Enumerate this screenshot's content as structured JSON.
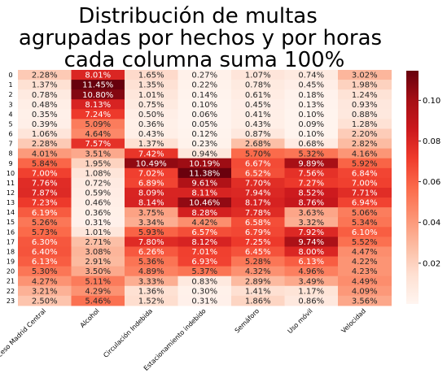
{
  "chart_data": {
    "type": "heatmap",
    "title_lines": [
      "Distribución de multas",
      "agrupadas por hechos y por horas",
      "cada columna suma 100%"
    ],
    "columns": [
      "Acceso Madrid Central",
      "Alcohol",
      "Circulación Indebida",
      "Estacionamiento indebido",
      "Semáforo",
      "Uso móvil",
      "Velocidad"
    ],
    "rows": [
      "0",
      "1",
      "2",
      "3",
      "4",
      "5",
      "6",
      "7",
      "8",
      "9",
      "10",
      "11",
      "12",
      "13",
      "14",
      "15",
      "16",
      "17",
      "18",
      "19",
      "20",
      "21",
      "22",
      "23"
    ],
    "values": [
      [
        0.0228,
        0.0801,
        0.0165,
        0.0027,
        0.0107,
        0.0074,
        0.0302
      ],
      [
        0.0137,
        0.1145,
        0.0135,
        0.0022,
        0.0078,
        0.0045,
        0.0198
      ],
      [
        0.0078,
        0.108,
        0.0101,
        0.0014,
        0.0061,
        0.0018,
        0.0124
      ],
      [
        0.0048,
        0.0813,
        0.0075,
        0.001,
        0.0045,
        0.0013,
        0.0093
      ],
      [
        0.0035,
        0.0724,
        0.005,
        0.0006,
        0.0041,
        0.001,
        0.0088
      ],
      [
        0.0039,
        0.0509,
        0.0036,
        0.0005,
        0.0043,
        0.0009,
        0.0128
      ],
      [
        0.0106,
        0.0464,
        0.0043,
        0.0012,
        0.0087,
        0.001,
        0.022
      ],
      [
        0.0228,
        0.0757,
        0.0137,
        0.0023,
        0.0268,
        0.0068,
        0.0282
      ],
      [
        0.0401,
        0.0351,
        0.0742,
        0.0094,
        0.057,
        0.0532,
        0.0416
      ],
      [
        0.0584,
        0.0195,
        0.1049,
        0.1019,
        0.0667,
        0.0989,
        0.0592
      ],
      [
        0.07,
        0.0108,
        0.0702,
        0.1138,
        0.0652,
        0.0756,
        0.0684
      ],
      [
        0.0776,
        0.0072,
        0.0689,
        0.0961,
        0.077,
        0.0727,
        0.07
      ],
      [
        0.0787,
        0.0059,
        0.0809,
        0.0811,
        0.0794,
        0.0852,
        0.0771
      ],
      [
        0.0723,
        0.0046,
        0.0814,
        0.1046,
        0.0817,
        0.0876,
        0.0694
      ],
      [
        0.0619,
        0.0036,
        0.0375,
        0.0828,
        0.0778,
        0.0363,
        0.0506
      ],
      [
        0.0526,
        0.0031,
        0.0334,
        0.0442,
        0.0658,
        0.0332,
        0.0534
      ],
      [
        0.0573,
        0.0101,
        0.0593,
        0.0657,
        0.0679,
        0.0792,
        0.061
      ],
      [
        0.063,
        0.0271,
        0.078,
        0.0812,
        0.0725,
        0.0974,
        0.0552
      ],
      [
        0.064,
        0.0308,
        0.0626,
        0.0701,
        0.0645,
        0.08,
        0.0447
      ],
      [
        0.0613,
        0.0291,
        0.0536,
        0.0693,
        0.0528,
        0.0613,
        0.0422
      ],
      [
        0.053,
        0.035,
        0.0489,
        0.0537,
        0.0432,
        0.0496,
        0.0423
      ],
      [
        0.0427,
        0.0511,
        0.0333,
        0.0083,
        0.0289,
        0.0349,
        0.0449
      ],
      [
        0.0321,
        0.0429,
        0.0136,
        0.003,
        0.0141,
        0.0117,
        0.0409
      ],
      [
        0.025,
        0.0546,
        0.0152,
        0.0031,
        0.0186,
        0.0086,
        0.0356
      ]
    ],
    "value_format": "percent_2dp",
    "colormap": "Reds",
    "colorbar": {
      "min": 0,
      "max": 0.1145,
      "ticks": [
        "0.02",
        "0.04",
        "0.06",
        "0.08",
        "0.10"
      ]
    },
    "colors": {
      "low": "#fff5f0",
      "high": "#67000d"
    }
  }
}
